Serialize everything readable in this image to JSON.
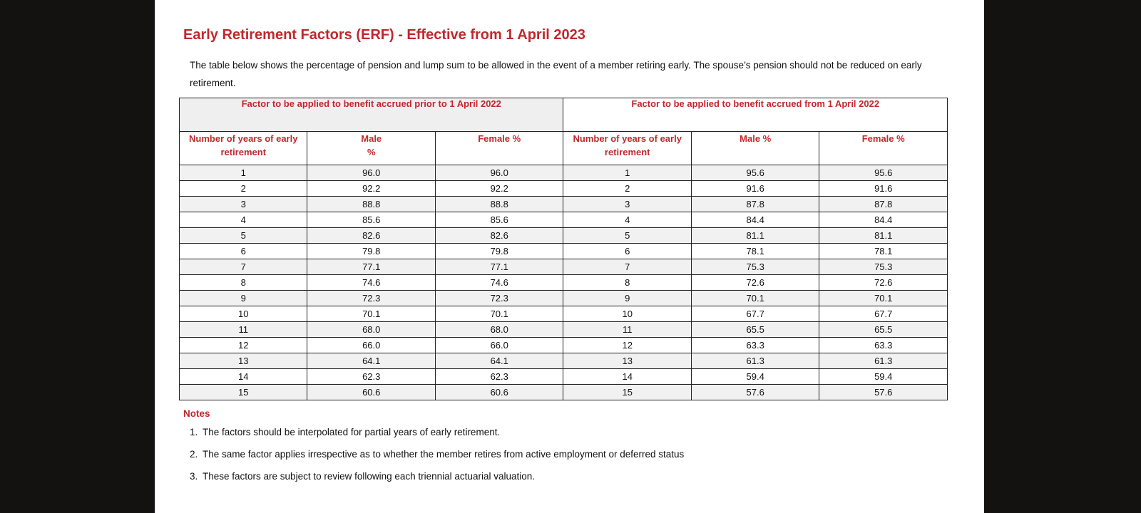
{
  "title": "Early Retirement Factors (ERF) - Effective from 1 April 2023",
  "intro": "The table below shows the percentage of pension and lump sum to be allowed in the event of a member retiring early. The spouse’s pension should not be reduced on early retirement.",
  "table": {
    "group_left": "Factor to be applied to benefit accrued prior to 1 April 2022",
    "group_right": "Factor to be applied to benefit accrued from 1 April 2022",
    "headers": {
      "years_left": "Number of years of early retirement",
      "male_left_line1": "Male",
      "male_left_line2": "%",
      "female_left": "Female %",
      "years_right": "Number of years of early retirement",
      "male_right": "Male %",
      "female_right": "Female  %"
    },
    "rows": [
      [
        "1",
        "96.0",
        "96.0",
        "1",
        "95.6",
        "95.6"
      ],
      [
        "2",
        "92.2",
        "92.2",
        "2",
        "91.6",
        "91.6"
      ],
      [
        "3",
        "88.8",
        "88.8",
        "3",
        "87.8",
        "87.8"
      ],
      [
        "4",
        "85.6",
        "85.6",
        "4",
        "84.4",
        "84.4"
      ],
      [
        "5",
        "82.6",
        "82.6",
        "5",
        "81.1",
        "81.1"
      ],
      [
        "6",
        "79.8",
        "79.8",
        "6",
        "78.1",
        "78.1"
      ],
      [
        "7",
        "77.1",
        "77.1",
        "7",
        "75.3",
        "75.3"
      ],
      [
        "8",
        "74.6",
        "74.6",
        "8",
        "72.6",
        "72.6"
      ],
      [
        "9",
        "72.3",
        "72.3",
        "9",
        "70.1",
        "70.1"
      ],
      [
        "10",
        "70.1",
        "70.1",
        "10",
        "67.7",
        "67.7"
      ],
      [
        "11",
        "68.0",
        "68.0",
        "11",
        "65.5",
        "65.5"
      ],
      [
        "12",
        "66.0",
        "66.0",
        "12",
        "63.3",
        "63.3"
      ],
      [
        "13",
        "64.1",
        "64.1",
        "13",
        "61.3",
        "61.3"
      ],
      [
        "14",
        "62.3",
        "62.3",
        "14",
        "59.4",
        "59.4"
      ],
      [
        "15",
        "60.6",
        "60.6",
        "15",
        "57.6",
        "57.6"
      ]
    ]
  },
  "notes": {
    "title": "Notes",
    "items": [
      {
        "num": "1.",
        "text": "The factors should be interpolated for partial years of early retirement."
      },
      {
        "num": "2.",
        "text": "The same factor applies irrespective as to whether the member retires from active employment or deferred status"
      },
      {
        "num": "3.",
        "text": "These factors are subject to review following each triennial actuarial valuation."
      }
    ]
  },
  "colors": {
    "accent": "#c0282d",
    "backdrop": "#141111",
    "page": "#ffffff",
    "stripe": "#f1f1f1"
  }
}
